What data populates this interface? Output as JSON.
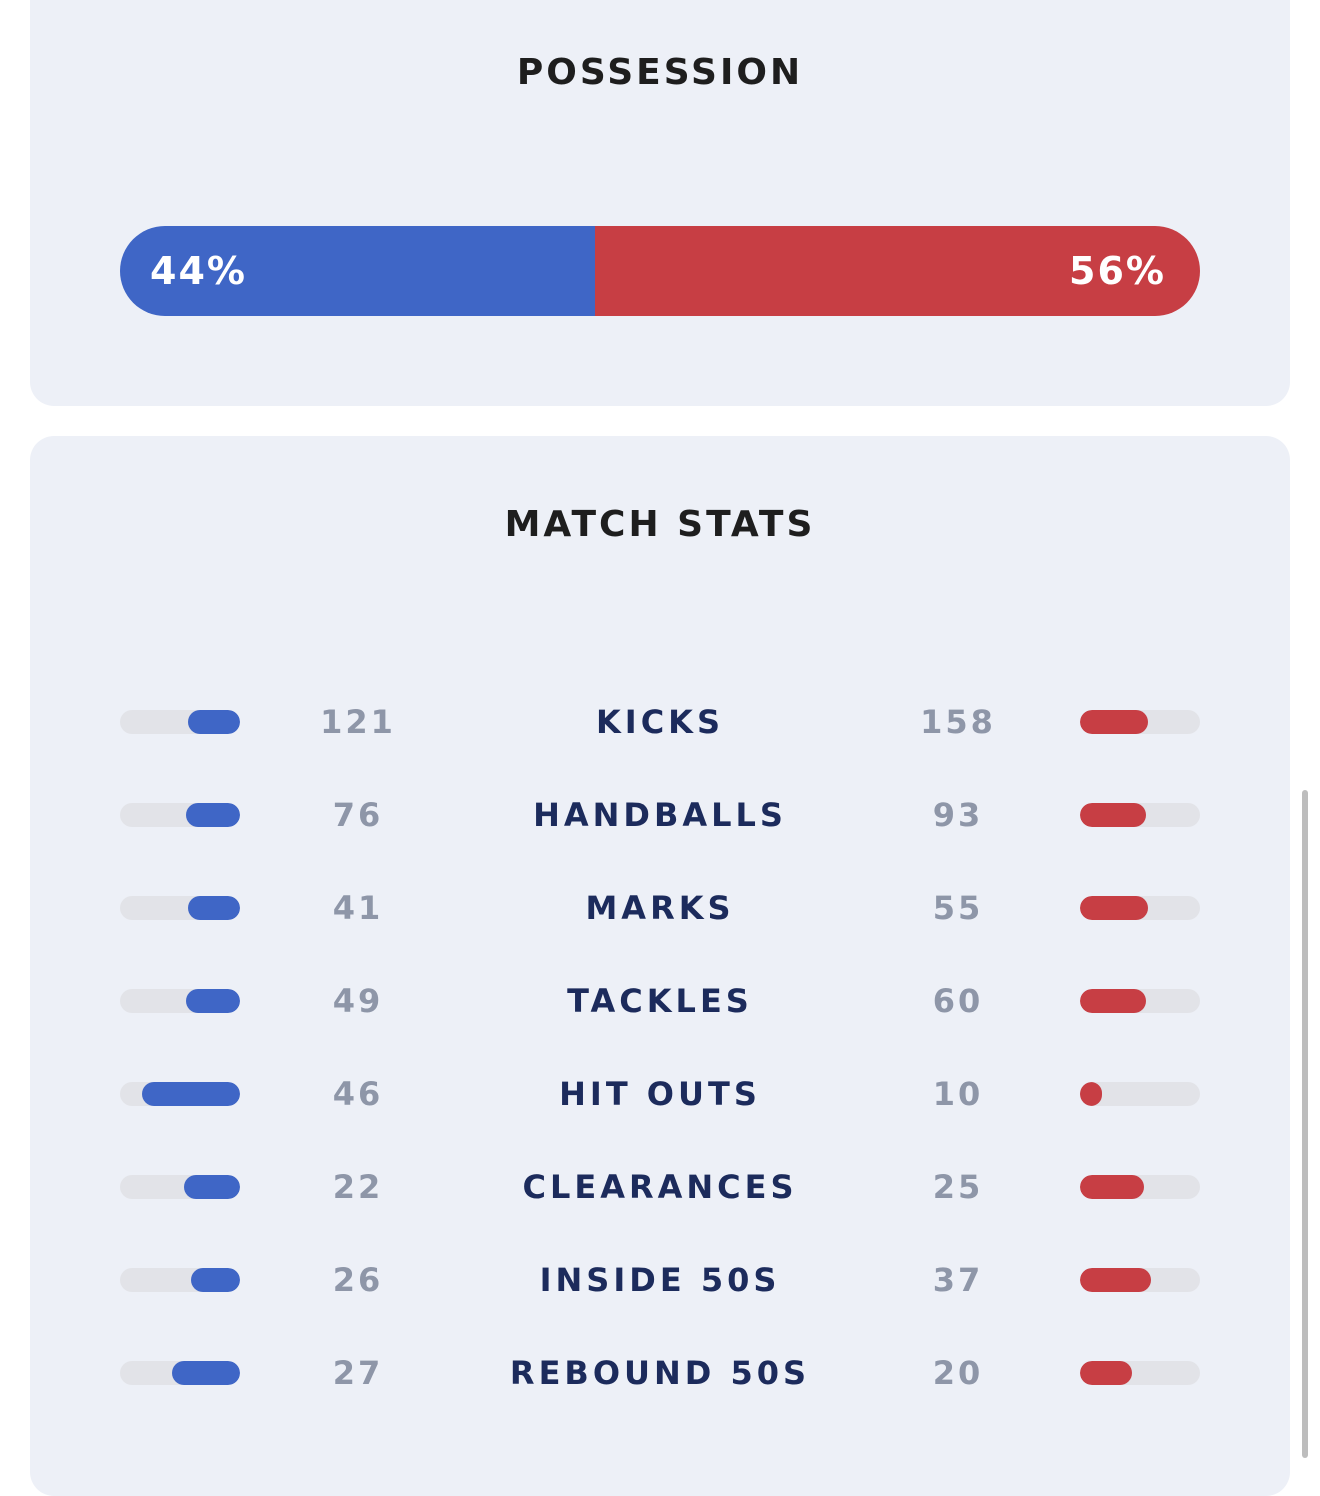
{
  "colors": {
    "home": "#3f66c6",
    "away": "#c73e44",
    "track": "#e2e3e8"
  },
  "possession": {
    "title": "POSSESSION",
    "home_pct": 44,
    "away_pct": 56,
    "home_label": "44%",
    "away_label": "56%"
  },
  "match_stats": {
    "title": "MATCH STATS",
    "rows": [
      {
        "label": "KICKS",
        "home": "121",
        "away": "158",
        "home_fill": 0.43,
        "away_fill": 0.57
      },
      {
        "label": "HANDBALLS",
        "home": "76",
        "away": "93",
        "home_fill": 0.45,
        "away_fill": 0.55
      },
      {
        "label": "MARKS",
        "home": "41",
        "away": "55",
        "home_fill": 0.43,
        "away_fill": 0.57
      },
      {
        "label": "TACKLES",
        "home": "49",
        "away": "60",
        "home_fill": 0.45,
        "away_fill": 0.55
      },
      {
        "label": "HIT OUTS",
        "home": "46",
        "away": "10",
        "home_fill": 0.82,
        "away_fill": 0.18
      },
      {
        "label": "CLEARANCES",
        "home": "22",
        "away": "25",
        "home_fill": 0.47,
        "away_fill": 0.53
      },
      {
        "label": "INSIDE 50S",
        "home": "26",
        "away": "37",
        "home_fill": 0.41,
        "away_fill": 0.59
      },
      {
        "label": "REBOUND 50S",
        "home": "27",
        "away": "20",
        "home_fill": 0.57,
        "away_fill": 0.43
      }
    ]
  }
}
